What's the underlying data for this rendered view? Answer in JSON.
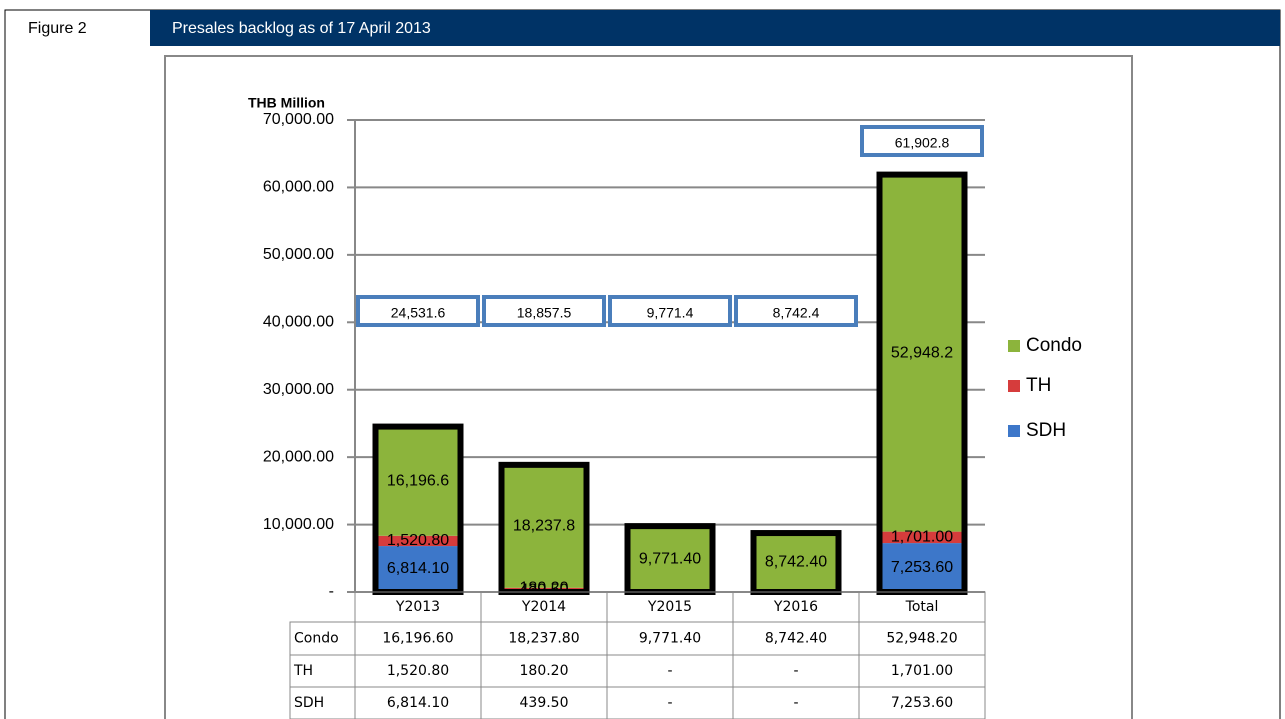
{
  "header": {
    "label": "Figure 2",
    "title": "Presales backlog as of 17 April 2013"
  },
  "chart_data": {
    "type": "stacked_bar",
    "y_label": "THB Million",
    "categories": [
      "Y2013",
      "Y2014",
      "Y2015",
      "Y2016",
      "Total"
    ],
    "series": [
      {
        "name": "SDH",
        "color": "#3d77c9",
        "values": [
          6814.1,
          439.5,
          0,
          0,
          7253.6
        ],
        "value_labels": [
          "6,814.10",
          "439.50",
          "-",
          "-",
          "7,253.60"
        ],
        "table_labels": [
          "6,814.10",
          "439.50",
          "-",
          "-",
          "7,253.60"
        ]
      },
      {
        "name": "TH",
        "color": "#d63c3c",
        "values": [
          1520.8,
          180.2,
          0,
          0,
          1701.0
        ],
        "value_labels": [
          "1,520.80",
          "180.20",
          "-",
          "-",
          "1,701.00"
        ],
        "table_labels": [
          "1,520.80",
          "180.20",
          "-",
          "-",
          "1,701.00"
        ]
      },
      {
        "name": "Condo",
        "color": "#8cb43c",
        "values": [
          16196.6,
          18237.8,
          9771.4,
          8742.4,
          52948.2
        ],
        "value_labels": [
          "16,196.6",
          "18,237.8",
          "9,771.40",
          "8,742.40",
          "52,948.2"
        ],
        "table_labels": [
          "16,196.60",
          "18,237.80",
          "9,771.40",
          "8,742.40",
          "52,948.20"
        ]
      }
    ],
    "totals": {
      "values": [
        24531.6,
        18857.5,
        9771.4,
        8742.4,
        61902.8
      ],
      "value_labels": [
        "24,531.6",
        "18,857.5",
        "9,771.4",
        "8,742.4",
        "61,902.8"
      ]
    },
    "ylim": [
      0,
      70000
    ],
    "yticks": [
      {
        "value": 0,
        "label": "-"
      },
      {
        "value": 10000,
        "label": "10,000.00"
      },
      {
        "value": 20000,
        "label": "20,000.00"
      },
      {
        "value": 30000,
        "label": "30,000.00"
      },
      {
        "value": 40000,
        "label": "40,000.00"
      },
      {
        "value": 50000,
        "label": "50,000.00"
      },
      {
        "value": 60000,
        "label": "60,000.00"
      },
      {
        "value": 70000,
        "label": "70,000.00"
      }
    ],
    "grid": true,
    "legend": "right"
  }
}
